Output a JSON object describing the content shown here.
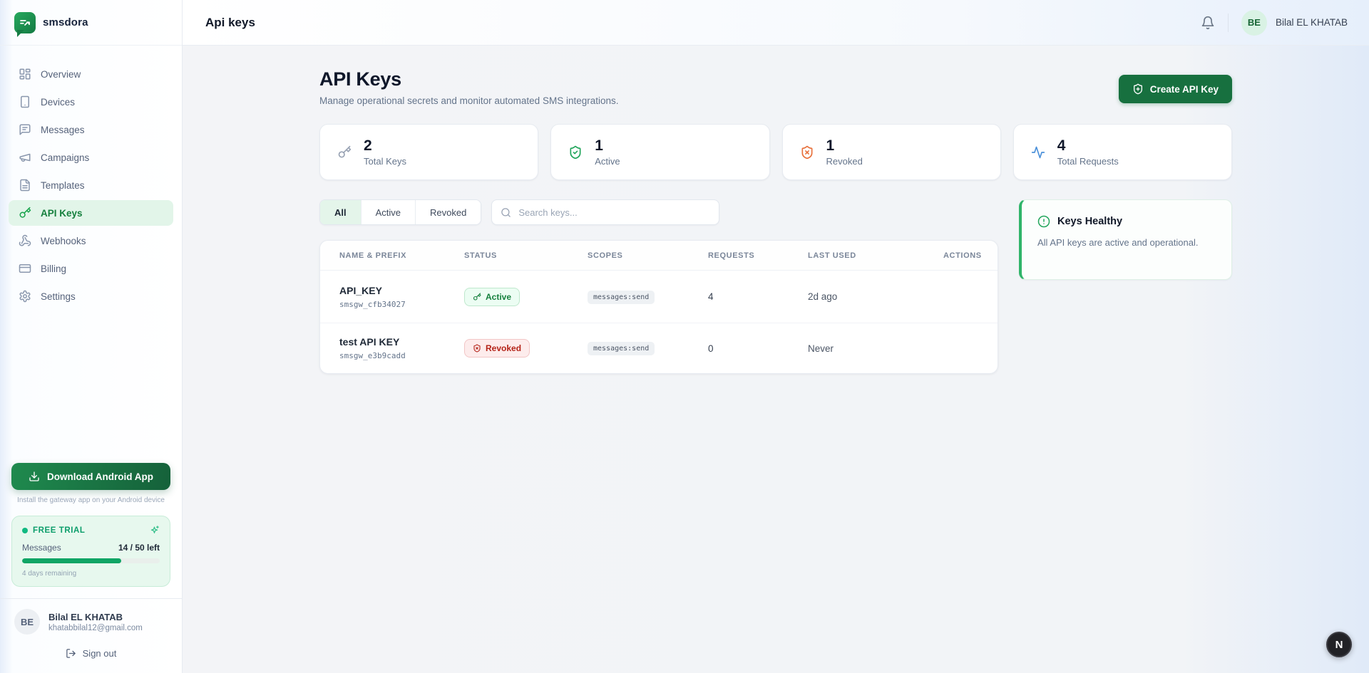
{
  "brand": {
    "name": "smsdora"
  },
  "colors": {
    "brand_green": "#16a34a",
    "button_green": "#17703f",
    "active_green": "#15803d",
    "revoked_red": "#b42318",
    "warn_orange": "#e8713c",
    "accent_blue": "#4a90d9"
  },
  "sidebar": {
    "items": [
      {
        "label": "Overview"
      },
      {
        "label": "Devices"
      },
      {
        "label": "Messages"
      },
      {
        "label": "Campaigns"
      },
      {
        "label": "Templates"
      },
      {
        "label": "API Keys"
      },
      {
        "label": "Webhooks"
      },
      {
        "label": "Billing"
      },
      {
        "label": "Settings"
      }
    ],
    "download_button": "Download Android App",
    "download_caption": "Install the gateway app on your Android device",
    "trial": {
      "badge": "FREE TRIAL",
      "metric_label": "Messages",
      "metric_value": "14 / 50 left",
      "progress_pct": 72,
      "remaining": "4 days remaining"
    },
    "user": {
      "initials": "BE",
      "name": "Bilal EL KHATAB",
      "email": "khatabbilal12@gmail.com"
    },
    "signout_label": "Sign out"
  },
  "header": {
    "title": "Api keys",
    "user": {
      "initials": "BE",
      "name": "Bilal EL KHATAB"
    }
  },
  "main": {
    "title": "API Keys",
    "subtitle": "Manage operational secrets and monitor automated SMS integrations.",
    "create_button": "Create API Key",
    "stats": [
      {
        "value": "2",
        "label": "Total Keys"
      },
      {
        "value": "1",
        "label": "Active"
      },
      {
        "value": "1",
        "label": "Revoked"
      },
      {
        "value": "4",
        "label": "Total Requests"
      }
    ],
    "filters": {
      "tabs": [
        "All",
        "Active",
        "Revoked"
      ],
      "active_tab": "All",
      "search_placeholder": "Search keys..."
    },
    "health": {
      "title": "Keys Healthy",
      "message": "All API keys are active and operational."
    },
    "table": {
      "columns": [
        "NAME & PREFIX",
        "STATUS",
        "SCOPES",
        "REQUESTS",
        "LAST USED",
        "ACTIONS"
      ],
      "rows": [
        {
          "name": "API_KEY",
          "prefix": "smsgw_cfb34027",
          "status": "Active",
          "scope": "messages:send",
          "requests": "4",
          "last_used": "2d ago"
        },
        {
          "name": "test API KEY",
          "prefix": "smsgw_e3b9cadd",
          "status": "Revoked",
          "scope": "messages:send",
          "requests": "0",
          "last_used": "Never"
        }
      ]
    }
  },
  "dev_badge": "N"
}
